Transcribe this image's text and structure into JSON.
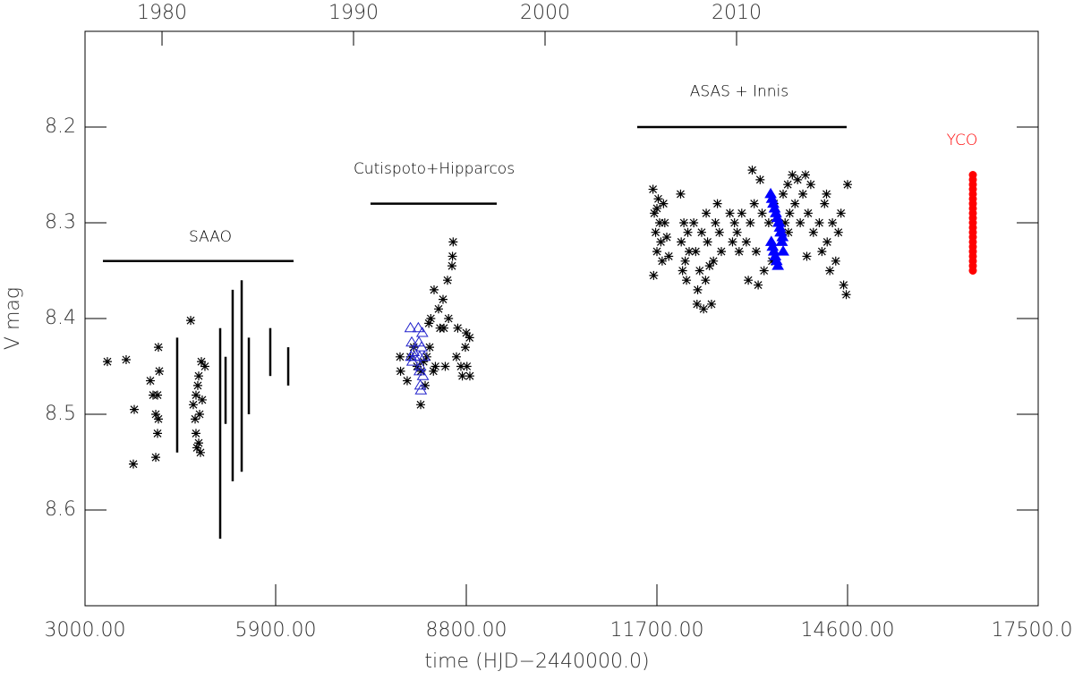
{
  "chart_data": {
    "type": "scatter",
    "xlabel": "time (HJD−2440000.0)",
    "ylabel": "V mag",
    "xlim": [
      3000,
      17500
    ],
    "xticks": [
      {
        "value": 3000,
        "label": "3000.00"
      },
      {
        "value": 5900,
        "label": "5900.00"
      },
      {
        "value": 8800,
        "label": "8800.00"
      },
      {
        "value": 11700,
        "label": "11700.00"
      },
      {
        "value": 14600,
        "label": "14600.00"
      },
      {
        "value": 17500,
        "label": "17500.00"
      }
    ],
    "ylim": [
      8.7,
      8.1
    ],
    "yticks": [
      8.2,
      8.3,
      8.4,
      8.5,
      8.6
    ],
    "x2lim": [
      1975.98,
      2025.75
    ],
    "x2ticks": [
      1980,
      1990,
      2000,
      2010
    ],
    "annotations": [
      {
        "text": "SAAO",
        "x": 4906,
        "y": 8.315,
        "span": [
          3272,
          6172
        ],
        "line_y": 8.34,
        "color": "#000000"
      },
      {
        "text": "Cutispoto+Hipparcos",
        "x": 8310,
        "y": 8.244,
        "span": [
          7343,
          9263
        ],
        "line_y": 8.28,
        "color": "#000000"
      },
      {
        "text": "ASAS + Innis",
        "x": 12952,
        "y": 8.163,
        "span": [
          11400,
          14586
        ],
        "line_y": 8.2,
        "color": "#000000"
      },
      {
        "text": "YCO",
        "x": 16342,
        "y": 8.214,
        "color": "#ff0000"
      }
    ],
    "series": [
      {
        "marker": "asterisk",
        "color": "#000000",
        "x": [
          3340,
          3626,
          3749,
          3735,
          3994,
          4035,
          4103,
          4076,
          4116,
          4076,
          4103,
          4116,
          4130,
          4607,
          4647,
          4688,
          4715,
          4729,
          4743,
          4688,
          4756,
          4702,
          4770,
          4824,
          4783,
          4675,
          4729
        ],
        "values": [
          8.445,
          8.443,
          8.495,
          8.552,
          8.465,
          8.48,
          8.48,
          8.5,
          8.505,
          8.545,
          8.52,
          8.43,
          8.455,
          8.402,
          8.49,
          8.48,
          8.47,
          8.46,
          8.5,
          8.52,
          8.54,
          8.535,
          8.445,
          8.45,
          8.485,
          8.505,
          8.53
        ]
      },
      {
        "marker": "errorbar",
        "color": "#000000",
        "x": [
          4402,
          5056,
          5138,
          5246,
          5383,
          5492,
          5818,
          6091
        ],
        "low": [
          8.42,
          8.41,
          8.44,
          8.37,
          8.36,
          8.42,
          8.41,
          8.43
        ],
        "high": [
          8.54,
          8.63,
          8.51,
          8.57,
          8.56,
          8.5,
          8.46,
          8.47
        ]
      },
      {
        "marker": "asterisk",
        "color": "#000000",
        "x": [
          7792,
          7800,
          7901,
          7950,
          8000,
          8106,
          8110,
          8174,
          8200,
          8242,
          8260,
          8310,
          8330,
          8378,
          8400,
          8446,
          8460,
          8480,
          8514,
          8530,
          8582,
          8600,
          8590,
          8650,
          8670,
          8718,
          8740,
          8786,
          8800,
          8810,
          8854,
          8850,
          8230,
          8300,
          8150,
          8050
        ],
        "values": [
          8.44,
          8.455,
          8.465,
          8.44,
          8.43,
          8.49,
          8.455,
          8.47,
          8.44,
          8.43,
          8.4,
          8.37,
          8.45,
          8.39,
          8.41,
          8.38,
          8.41,
          8.45,
          8.36,
          8.4,
          8.345,
          8.32,
          8.335,
          8.44,
          8.41,
          8.45,
          8.46,
          8.43,
          8.415,
          8.45,
          8.46,
          8.42,
          8.405,
          8.455,
          8.445,
          8.45
        ]
      },
      {
        "marker": "triangle-open",
        "color": "#2222cc",
        "x": [
          7950,
          7960,
          7970,
          7980,
          8000,
          8010,
          8070,
          8080,
          8090,
          8100,
          8110,
          8120,
          8130,
          8140,
          8160,
          8100,
          8090
        ],
        "values": [
          8.41,
          8.44,
          8.425,
          8.445,
          8.435,
          8.44,
          8.41,
          8.425,
          8.44,
          8.45,
          8.475,
          8.43,
          8.415,
          8.46,
          8.44,
          8.47,
          8.455
        ]
      },
      {
        "marker": "asterisk",
        "color": "#000000",
        "x": [
          11640,
          11660,
          11680,
          11700,
          11720,
          11740,
          11760,
          11780,
          11800,
          11820,
          11850,
          11880,
          11650,
          11700,
          12060,
          12070,
          12090,
          12110,
          12130,
          12150,
          12170,
          12190,
          12260,
          12290,
          12320,
          12350,
          12380,
          12410,
          12440,
          12470,
          12500,
          12530,
          12560,
          12590,
          12620,
          12650,
          12680,
          12310,
          12450,
          12810,
          12850,
          12880,
          12920,
          12950,
          12990,
          13060,
          13090,
          13120,
          13150,
          13180,
          13210,
          13240,
          13270,
          13300,
          13330,
          13400,
          13450,
          13480,
          13620,
          13650,
          13690,
          13720,
          13760,
          13800,
          13840,
          13880,
          13920,
          13960,
          14000,
          14040,
          14080,
          13980,
          13700,
          14170,
          14210,
          14250,
          14290,
          14330,
          14370,
          14420,
          14460,
          14500,
          14540,
          14580,
          14600,
          14280
        ],
        "values": [
          8.265,
          8.29,
          8.31,
          8.33,
          8.275,
          8.3,
          8.32,
          8.34,
          8.28,
          8.3,
          8.315,
          8.335,
          8.355,
          8.285,
          8.27,
          8.32,
          8.35,
          8.3,
          8.34,
          8.36,
          8.31,
          8.33,
          8.3,
          8.33,
          8.37,
          8.35,
          8.31,
          8.39,
          8.36,
          8.32,
          8.345,
          8.385,
          8.34,
          8.3,
          8.28,
          8.31,
          8.33,
          8.385,
          8.29,
          8.29,
          8.32,
          8.3,
          8.31,
          8.33,
          8.29,
          8.32,
          8.36,
          8.3,
          8.245,
          8.28,
          8.33,
          8.365,
          8.255,
          8.29,
          8.35,
          8.3,
          8.34,
          8.28,
          8.27,
          8.3,
          8.26,
          8.29,
          8.25,
          8.28,
          8.255,
          8.3,
          8.27,
          8.25,
          8.29,
          8.26,
          8.31,
          8.335,
          8.31,
          8.3,
          8.33,
          8.28,
          8.32,
          8.35,
          8.3,
          8.34,
          8.31,
          8.29,
          8.365,
          8.375,
          8.26,
          8.27
        ]
      },
      {
        "marker": "triangle",
        "color": "#0000ff",
        "x": [
          13430,
          13450,
          13470,
          13490,
          13510,
          13530,
          13550,
          13570,
          13590,
          13610,
          13440,
          13460,
          13480,
          13500,
          13520,
          13540,
          13560,
          13580,
          13600,
          13620
        ],
        "values": [
          8.27,
          8.275,
          8.28,
          8.285,
          8.29,
          8.295,
          8.3,
          8.305,
          8.31,
          8.315,
          8.32,
          8.325,
          8.33,
          8.335,
          8.34,
          8.345,
          8.3,
          8.31,
          8.32,
          8.33
        ]
      },
      {
        "marker": "circle",
        "color": "#ff0000",
        "x": [
          16506,
          16506,
          16506,
          16506,
          16506,
          16506,
          16506,
          16506,
          16506,
          16506,
          16506,
          16506,
          16506,
          16506,
          16506,
          16506,
          16506,
          16506,
          16506,
          16506,
          16506
        ],
        "values": [
          8.25,
          8.255,
          8.26,
          8.265,
          8.27,
          8.275,
          8.28,
          8.285,
          8.29,
          8.295,
          8.3,
          8.305,
          8.31,
          8.315,
          8.32,
          8.325,
          8.33,
          8.335,
          8.34,
          8.345,
          8.35
        ]
      }
    ]
  }
}
